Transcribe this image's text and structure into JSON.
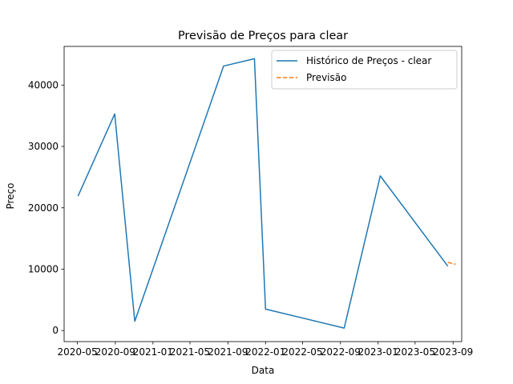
{
  "chart_data": {
    "type": "line",
    "title": "Previsão de Preços para clear",
    "xlabel": "Data",
    "ylabel": "Preço",
    "x_ticks": [
      "2020-05",
      "2020-09",
      "2021-01",
      "2021-05",
      "2021-09",
      "2022-01",
      "2022-05",
      "2022-09",
      "2023-01",
      "2023-05",
      "2023-09"
    ],
    "y_ticks": [
      0,
      10000,
      20000,
      30000,
      40000
    ],
    "xlim": [
      "2020-03-19",
      "2023-09-29"
    ],
    "ylim": [
      -1800,
      46300
    ],
    "grid": false,
    "legend_placement": "top-right",
    "series": [
      {
        "name": "Histórico de Preços - clear",
        "color": "#1f77b4",
        "style": "solid",
        "points": [
          {
            "x": "2020-05-03",
            "y": 21900
          },
          {
            "x": "2020-08-30",
            "y": 35300
          },
          {
            "x": "2020-11-03",
            "y": 1500
          },
          {
            "x": "2021-08-18",
            "y": 43100
          },
          {
            "x": "2021-11-26",
            "y": 44300
          },
          {
            "x": "2022-01-01",
            "y": 3500
          },
          {
            "x": "2022-09-13",
            "y": 400
          },
          {
            "x": "2023-01-08",
            "y": 25200
          },
          {
            "x": "2023-08-15",
            "y": 10500
          }
        ]
      },
      {
        "name": "Previsão",
        "color": "#ff7f0e",
        "style": "dashed",
        "points": [
          {
            "x": "2023-08-15",
            "y": 11100
          },
          {
            "x": "2023-09-09",
            "y": 10800
          }
        ]
      }
    ]
  }
}
